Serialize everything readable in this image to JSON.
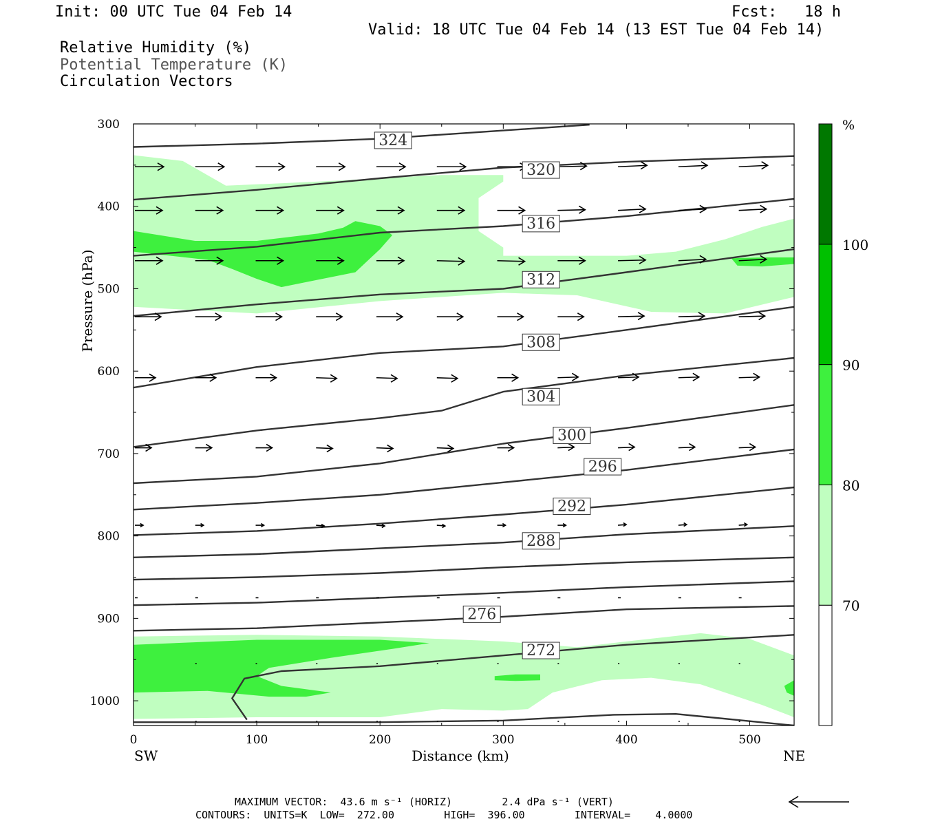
{
  "header": {
    "init": "Init: 00 UTC Tue 04 Feb 14",
    "fcst": "Fcst:   18 h",
    "valid": "Valid: 18 UTC Tue 04 Feb 14 (13 EST Tue 04 Feb 14)"
  },
  "legend_lines": [
    {
      "text": "Relative Humidity (%)",
      "color": "#000000"
    },
    {
      "text": "Potential Temperature (K)",
      "color": "#555555"
    },
    {
      "text": "Circulation Vectors",
      "color": "#000000"
    }
  ],
  "footer": {
    "max_vector": "MAXIMUM VECTOR:  43.6 m s⁻¹ (HORIZ)        2.4 dPa s⁻¹ (VERT)",
    "contours": "CONTOURS:  UNITS=K  LOW=  272.00        HIGH=  396.00        INTERVAL=    4.0000"
  },
  "chart_data": {
    "type": "contour-cross-section",
    "xlabel": "Distance (km)",
    "ylabel": "Pressure (hPa)",
    "x_range": [
      0,
      536
    ],
    "y_range": [
      300,
      1030
    ],
    "y_scale": "linear, inverted",
    "xticks": [
      0,
      100,
      200,
      300,
      400,
      500
    ],
    "yticks": [
      300,
      400,
      500,
      600,
      700,
      800,
      900,
      1000
    ],
    "x_end_labels": {
      "left": "SW",
      "right": "NE"
    },
    "colorbar": {
      "unit": "%",
      "levels": [
        70,
        80,
        90,
        100
      ],
      "colors": [
        "#ffffff",
        "#c0fec0",
        "#3ef03e",
        "#00c000",
        "#007800"
      ]
    },
    "isentropes": [
      {
        "theta": 324,
        "points": [
          [
            0,
            328
          ],
          [
            100,
            324
          ],
          [
            200,
            318
          ],
          [
            300,
            308
          ],
          [
            370,
            301
          ]
        ]
      },
      {
        "theta": 320,
        "points": [
          [
            0,
            392
          ],
          [
            100,
            380
          ],
          [
            200,
            366
          ],
          [
            300,
            353
          ],
          [
            400,
            346
          ],
          [
            536,
            339
          ]
        ]
      },
      {
        "theta": 316,
        "points": [
          [
            0,
            460
          ],
          [
            100,
            449
          ],
          [
            200,
            432
          ],
          [
            300,
            424
          ],
          [
            400,
            412
          ],
          [
            536,
            391
          ]
        ]
      },
      {
        "theta": 312,
        "points": [
          [
            0,
            533
          ],
          [
            100,
            519
          ],
          [
            200,
            507
          ],
          [
            300,
            500
          ],
          [
            400,
            480
          ],
          [
            536,
            452
          ]
        ]
      },
      {
        "theta": 308,
        "points": [
          [
            0,
            620
          ],
          [
            100,
            595
          ],
          [
            200,
            578
          ],
          [
            300,
            570
          ],
          [
            400,
            550
          ],
          [
            536,
            522
          ]
        ]
      },
      {
        "theta": 304,
        "points": [
          [
            0,
            692
          ],
          [
            100,
            672
          ],
          [
            200,
            657
          ],
          [
            250,
            648
          ],
          [
            300,
            625
          ],
          [
            400,
            605
          ],
          [
            536,
            584
          ]
        ]
      },
      {
        "theta": 300,
        "points": [
          [
            0,
            736
          ],
          [
            100,
            728
          ],
          [
            200,
            712
          ],
          [
            300,
            688
          ],
          [
            400,
            669
          ],
          [
            536,
            641
          ]
        ]
      },
      {
        "theta": 296,
        "points": [
          [
            0,
            768
          ],
          [
            100,
            760
          ],
          [
            200,
            750
          ],
          [
            300,
            735
          ],
          [
            400,
            720
          ],
          [
            536,
            695
          ]
        ]
      },
      {
        "theta": 292,
        "points": [
          [
            0,
            799
          ],
          [
            100,
            794
          ],
          [
            200,
            785
          ],
          [
            300,
            774
          ],
          [
            400,
            762
          ],
          [
            536,
            741
          ]
        ]
      },
      {
        "theta": 288,
        "points": [
          [
            0,
            826
          ],
          [
            100,
            822
          ],
          [
            200,
            815
          ],
          [
            300,
            808
          ],
          [
            400,
            798
          ],
          [
            536,
            788
          ]
        ]
      },
      {
        "theta": 284,
        "points": [
          [
            0,
            853
          ],
          [
            100,
            850
          ],
          [
            200,
            845
          ],
          [
            300,
            838
          ],
          [
            400,
            832
          ],
          [
            536,
            826
          ]
        ]
      },
      {
        "theta": 280,
        "points": [
          [
            0,
            884
          ],
          [
            100,
            881
          ],
          [
            200,
            875
          ],
          [
            300,
            869
          ],
          [
            400,
            862
          ],
          [
            536,
            855
          ]
        ]
      },
      {
        "theta": 276,
        "points": [
          [
            0,
            915
          ],
          [
            100,
            912
          ],
          [
            200,
            905
          ],
          [
            300,
            898
          ],
          [
            400,
            889
          ],
          [
            536,
            885
          ]
        ]
      },
      {
        "theta": 272,
        "points": [
          [
            0,
            1026
          ],
          [
            100,
            1026
          ],
          [
            200,
            1026
          ],
          [
            300,
            1024
          ],
          [
            390,
            1017
          ],
          [
            440,
            1016
          ],
          [
            536,
            1030
          ]
        ]
      }
    ],
    "isentrope_272_upper": [
      [
        92,
        1023
      ],
      [
        80,
        997
      ],
      [
        90,
        973
      ],
      [
        120,
        964
      ],
      [
        200,
        958
      ],
      [
        300,
        945
      ],
      [
        400,
        932
      ],
      [
        536,
        920
      ]
    ],
    "contour_labels": [
      {
        "text": "324",
        "x": 195,
        "p": 320
      },
      {
        "text": "320",
        "x": 315,
        "p": 356
      },
      {
        "text": "316",
        "x": 315,
        "p": 421
      },
      {
        "text": "312",
        "x": 315,
        "p": 489
      },
      {
        "text": "308",
        "x": 315,
        "p": 565
      },
      {
        "text": "304",
        "x": 315,
        "p": 631
      },
      {
        "text": "300",
        "x": 340,
        "p": 678
      },
      {
        "text": "296",
        "x": 365,
        "p": 716
      },
      {
        "text": "292",
        "x": 340,
        "p": 764
      },
      {
        "text": "288",
        "x": 315,
        "p": 806
      },
      {
        "text": "276",
        "x": 267,
        "p": 895
      },
      {
        "text": "272",
        "x": 315,
        "p": 939
      }
    ],
    "rh_regions": [
      {
        "level": 70,
        "points": [
          [
            0,
            338
          ],
          [
            40,
            345
          ],
          [
            75,
            375
          ],
          [
            150,
            370
          ],
          [
            250,
            362
          ],
          [
            300,
            362
          ],
          [
            300,
            370
          ],
          [
            280,
            390
          ],
          [
            280,
            430
          ],
          [
            300,
            450
          ],
          [
            300,
            460
          ],
          [
            400,
            460
          ],
          [
            440,
            455
          ],
          [
            480,
            440
          ],
          [
            510,
            425
          ],
          [
            536,
            415
          ],
          [
            536,
            510
          ],
          [
            480,
            530
          ],
          [
            420,
            528
          ],
          [
            360,
            508
          ],
          [
            300,
            505
          ],
          [
            200,
            515
          ],
          [
            100,
            530
          ],
          [
            0,
            522
          ]
        ]
      },
      {
        "level": 70,
        "points": [
          [
            0,
            922
          ],
          [
            100,
            920
          ],
          [
            200,
            922
          ],
          [
            300,
            928
          ],
          [
            360,
            935
          ],
          [
            400,
            928
          ],
          [
            460,
            918
          ],
          [
            500,
            925
          ],
          [
            536,
            945
          ],
          [
            536,
            1020
          ],
          [
            510,
            1005
          ],
          [
            480,
            990
          ],
          [
            460,
            980
          ],
          [
            420,
            972
          ],
          [
            380,
            975
          ],
          [
            340,
            990
          ],
          [
            320,
            1010
          ],
          [
            300,
            1012
          ],
          [
            250,
            1010
          ],
          [
            200,
            1020
          ],
          [
            150,
            1020
          ],
          [
            100,
            1020
          ],
          [
            0,
            1022
          ]
        ]
      },
      {
        "level": 80,
        "points": [
          [
            0,
            430
          ],
          [
            50,
            442
          ],
          [
            100,
            442
          ],
          [
            150,
            433
          ],
          [
            170,
            426
          ],
          [
            180,
            418
          ],
          [
            200,
            424
          ],
          [
            210,
            435
          ],
          [
            200,
            452
          ],
          [
            180,
            480
          ],
          [
            140,
            492
          ],
          [
            120,
            498
          ],
          [
            100,
            488
          ],
          [
            80,
            476
          ],
          [
            60,
            465
          ],
          [
            0,
            455
          ]
        ]
      },
      {
        "level": 80,
        "points": [
          [
            0,
            932
          ],
          [
            100,
            926
          ],
          [
            200,
            926
          ],
          [
            240,
            930
          ],
          [
            210,
            937
          ],
          [
            160,
            948
          ],
          [
            110,
            960
          ],
          [
            100,
            970
          ],
          [
            120,
            982
          ],
          [
            160,
            990
          ],
          [
            140,
            995
          ],
          [
            110,
            995
          ],
          [
            60,
            988
          ],
          [
            0,
            990
          ]
        ]
      },
      {
        "level": 80,
        "points": [
          [
            485,
            463
          ],
          [
            510,
            462
          ],
          [
            536,
            462
          ],
          [
            536,
            470
          ],
          [
            510,
            473
          ],
          [
            490,
            472
          ]
        ]
      },
      {
        "level": 80,
        "points": [
          [
            293,
            970
          ],
          [
            310,
            968
          ],
          [
            330,
            968
          ],
          [
            330,
            975
          ],
          [
            310,
            976
          ],
          [
            293,
            975
          ]
        ]
      },
      {
        "level": 80,
        "points": [
          [
            528,
            982
          ],
          [
            536,
            975
          ],
          [
            536,
            994
          ],
          [
            530,
            990
          ]
        ]
      }
    ],
    "vector_rows": [
      {
        "p": 352,
        "xs": [
          0,
          49,
          98,
          147,
          196,
          245,
          294,
          343,
          392,
          441,
          490
        ],
        "len": 42,
        "dy": [
          0,
          0,
          0,
          0,
          0,
          0,
          0,
          -1,
          -2,
          -2,
          -2
        ]
      },
      {
        "p": 405,
        "xs": [
          0,
          49,
          98,
          147,
          196,
          245,
          294,
          343,
          392,
          441,
          490
        ],
        "len": 40,
        "dy": [
          0,
          0,
          0,
          0,
          0,
          0,
          0,
          -1,
          -2,
          -2,
          -2
        ]
      },
      {
        "p": 466,
        "xs": [
          0,
          49,
          98,
          147,
          196,
          245,
          294,
          343,
          392,
          441,
          490
        ],
        "len": 40,
        "dy": [
          0,
          0,
          0,
          0,
          0,
          1,
          1,
          0,
          -1,
          -2,
          -2
        ]
      },
      {
        "p": 534,
        "xs": [
          0,
          49,
          98,
          147,
          196,
          245,
          294,
          343,
          392,
          441,
          490
        ],
        "len": 38,
        "dy": [
          0,
          0,
          0,
          0,
          0,
          0,
          0,
          0,
          -1,
          -1,
          -1
        ]
      },
      {
        "p": 608,
        "xs": [
          0,
          49,
          98,
          147,
          196,
          245,
          294,
          343,
          392,
          441,
          490
        ],
        "len": 30,
        "dy": [
          0,
          0,
          0,
          1,
          1,
          1,
          0,
          -1,
          -1,
          -1,
          -1
        ]
      },
      {
        "p": 693,
        "xs": [
          0,
          49,
          98,
          147,
          196,
          245,
          294,
          343,
          392,
          441,
          490
        ],
        "len": 24,
        "dy": [
          0,
          0,
          0,
          1,
          1,
          1,
          0,
          -1,
          -1,
          -1,
          -1
        ]
      },
      {
        "p": 787,
        "xs": [
          0,
          49,
          98,
          147,
          196,
          245,
          294,
          343,
          392,
          441,
          490
        ],
        "len": 12,
        "dy": [
          0,
          0,
          0,
          1,
          1,
          1,
          0,
          0,
          -1,
          -1,
          -1
        ]
      },
      {
        "p": 875,
        "xs": [
          0,
          49,
          98,
          147,
          196,
          245,
          294,
          343,
          392,
          441,
          490
        ],
        "len": 4,
        "dy": [
          0,
          0,
          0,
          0,
          0,
          0,
          0,
          0,
          0,
          0,
          0
        ]
      },
      {
        "p": 955,
        "xs": [
          49,
          98,
          147,
          196,
          245,
          294,
          343,
          392,
          441,
          490
        ],
        "len": 2,
        "dy": [
          0,
          0,
          0,
          0,
          0,
          0,
          0,
          0,
          0,
          0
        ]
      },
      {
        "p": 1025,
        "xs": [
          49,
          98,
          147,
          196,
          245,
          294,
          343,
          392,
          441,
          490
        ],
        "len": 2,
        "dy": [
          0,
          0,
          0,
          0,
          0,
          0,
          0,
          0,
          0,
          0
        ]
      }
    ]
  }
}
